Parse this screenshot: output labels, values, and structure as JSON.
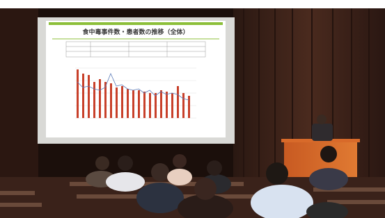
{
  "slide": {
    "title": "食中毒事件数・患者数の推移（全体）"
  }
}
